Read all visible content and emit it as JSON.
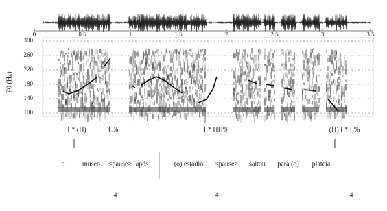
{
  "chart_data": {
    "type": "line",
    "y_label": "F0 (Hz)",
    "xlim": [
      0,
      3.5
    ],
    "xticks": [
      0,
      0.5,
      1,
      1.5,
      2,
      2.5,
      3,
      3.5
    ],
    "ylim": [
      100,
      300
    ],
    "yticks": [
      100,
      140,
      180,
      220,
      260,
      300
    ],
    "grid": true,
    "x": [
      0.3,
      0.36,
      0.46,
      0.57,
      0.66,
      0.7,
      0.73,
      0.79,
      0.9,
      1.02,
      1.05,
      1.08,
      1.11,
      1.18,
      1.27,
      1.36,
      1.46,
      1.54,
      1.6,
      1.71,
      1.79,
      1.86,
      1.9,
      2.1,
      2.23,
      2.32,
      2.36,
      2.41,
      2.5,
      2.55,
      2.59,
      2.68,
      2.75,
      2.81,
      2.93,
      3.0,
      3.06,
      3.12,
      3.16
    ],
    "series": [
      {
        "color": "#000000",
        "values": [
          161,
          153,
          163,
          183,
          201,
          null,
          230,
          252,
          null,
          176,
          170,
          null,
          176,
          190,
          201,
          190,
          170,
          155,
          null,
          129,
          138,
          167,
          201,
          null,
          191,
          182,
          null,
          180,
          176,
          null,
          170,
          165,
          null,
          165,
          161,
          null,
          138,
          119,
          106
        ]
      }
    ]
  },
  "tiers": {
    "tones": [
      "L* (H)",
      "L%",
      "L* HH%",
      "(H) L* L%"
    ],
    "words": [
      "o",
      "museo",
      "<pause>",
      "após",
      "(o) estádio",
      "<pause>",
      "saltou",
      "para (o)",
      "plateia"
    ],
    "breaks": [
      "4",
      "4",
      "4"
    ]
  }
}
